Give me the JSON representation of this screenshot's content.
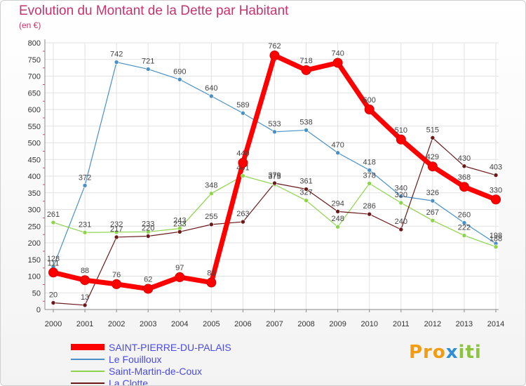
{
  "chart_data": {
    "type": "line",
    "title": "Evolution du Montant de la Dette par Habitant",
    "ylabel": "(en €)",
    "ylim": [
      0,
      800
    ],
    "yticks": [
      0,
      50,
      100,
      150,
      200,
      250,
      300,
      350,
      400,
      450,
      500,
      550,
      600,
      650,
      700,
      750,
      800
    ],
    "grid": true,
    "legend_position": "bottom-left",
    "categories": [
      "2000",
      "2001",
      "2002",
      "2003",
      "2004",
      "2005",
      "2006",
      "2007",
      "2008",
      "2009",
      "2010",
      "2011",
      "2012",
      "2013",
      "2014"
    ],
    "series": [
      {
        "name": "SAINT-PIERRE-DU-PALAIS",
        "color": "#ff0000",
        "values": [
          111,
          88,
          76,
          62,
          97,
          81,
          440,
          762,
          718,
          740,
          600,
          510,
          429,
          368,
          330
        ]
      },
      {
        "name": "Le Fouilloux",
        "color": "#4a90c8",
        "values": [
          128,
          372,
          742,
          721,
          690,
          640,
          589,
          533,
          538,
          470,
          418,
          340,
          326,
          260,
          198
        ]
      },
      {
        "name": "Saint-Martin-de-Coux",
        "color": "#8cd44a",
        "values": [
          261,
          231,
          232,
          233,
          243,
          348,
          401,
          375,
          327,
          248,
          378,
          320,
          267,
          222,
          188
        ]
      },
      {
        "name": "La Clotte",
        "color": "#6b1a1a",
        "values": [
          20,
          13,
          217,
          220,
          233,
          255,
          263,
          379,
          361,
          294,
          286,
          240,
          515,
          430,
          403
        ]
      }
    ]
  },
  "logo": {
    "part1": "Pro",
    "part2": "x",
    "part3": "iti"
  }
}
